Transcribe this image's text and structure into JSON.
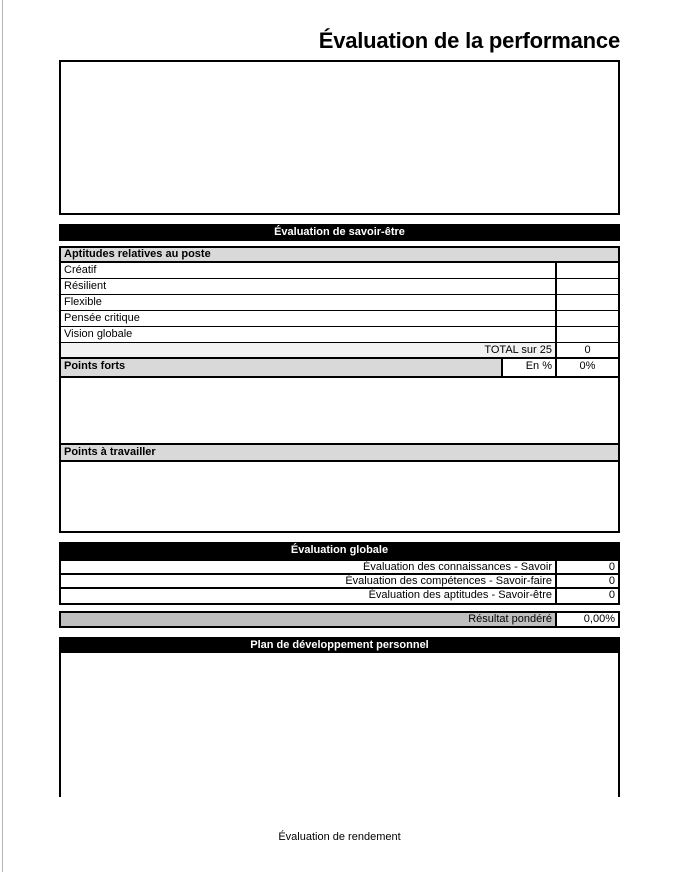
{
  "page": {
    "title": "Évaluation de la performance",
    "footer": "Évaluation de rendement"
  },
  "savoir_etre": {
    "header": "Évaluation de savoir-être",
    "subheader": "Aptitudes relatives au poste",
    "skills": [
      {
        "label": "Créatif",
        "value": ""
      },
      {
        "label": "Résilient",
        "value": ""
      },
      {
        "label": "Flexible",
        "value": ""
      },
      {
        "label": "Pensée critique",
        "value": ""
      },
      {
        "label": "Vision globale",
        "value": ""
      }
    ],
    "total_label": "TOTAL sur 25",
    "total_value": "0",
    "points_forts_label": "Points forts",
    "percent_label": "En %",
    "percent_value": "0%",
    "points_forts_text": "",
    "points_travailler_label": "Points à travailler",
    "points_travailler_text": ""
  },
  "globale": {
    "header": "Évaluation globale",
    "rows": [
      {
        "label": "Évaluation des connaissances - Savoir",
        "value": "0"
      },
      {
        "label": "Évaluation des compétences - Savoir-faire",
        "value": "0"
      },
      {
        "label": "Évaluation des aptitudes - Savoir-être",
        "value": "0"
      }
    ],
    "result_label": "Résultat pondéré",
    "result_value": "0,00%"
  },
  "plan": {
    "header": "Plan de développement personnel",
    "text": ""
  },
  "colors": {
    "section_header_bg": "#000000",
    "section_header_text": "#ffffff",
    "subheader_gray": "#d9d9d9",
    "total_row_gray": "#f2f2f2",
    "result_row_gray": "#bfbfbf",
    "border": "#000000"
  }
}
